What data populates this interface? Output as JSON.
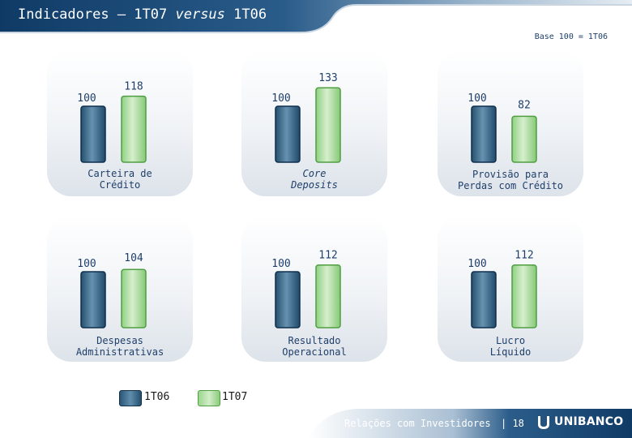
{
  "header": {
    "title_main": "Indicadores",
    "title_sep": " – 1T07 ",
    "title_versus": "versus",
    "title_end": " 1T06",
    "base_note": "Base 100 = 1T06"
  },
  "chart_data": [
    {
      "type": "bar",
      "categories": [
        "1T06",
        "1T07"
      ],
      "values": [
        100,
        118
      ],
      "title": "Carteira de\nCrédito",
      "title_italic": false
    },
    {
      "type": "bar",
      "categories": [
        "1T06",
        "1T07"
      ],
      "values": [
        100,
        133
      ],
      "title": "Core\nDeposits",
      "title_italic": true
    },
    {
      "type": "bar",
      "categories": [
        "1T06",
        "1T07"
      ],
      "values": [
        100,
        82
      ],
      "title": "Provisão para\nPerdas com Crédito",
      "title_italic": false
    },
    {
      "type": "bar",
      "categories": [
        "1T06",
        "1T07"
      ],
      "values": [
        100,
        104
      ],
      "title": "Despesas\nAdministrativas",
      "title_italic": false
    },
    {
      "type": "bar",
      "categories": [
        "1T06",
        "1T07"
      ],
      "values": [
        100,
        112
      ],
      "title": "Resultado\nOperacional",
      "title_italic": false
    },
    {
      "type": "bar",
      "categories": [
        "1T06",
        "1T07"
      ],
      "values": [
        100,
        112
      ],
      "title": "Lucro\nLíquido",
      "title_italic": false
    }
  ],
  "legend": [
    {
      "label": "1T06",
      "color": "#3b6a8a"
    },
    {
      "label": "1T07",
      "color": "#a8dc9c"
    }
  ],
  "footer": {
    "text": "Relações com Investidores",
    "page": "| 18",
    "logo": "UNIBANCO"
  }
}
